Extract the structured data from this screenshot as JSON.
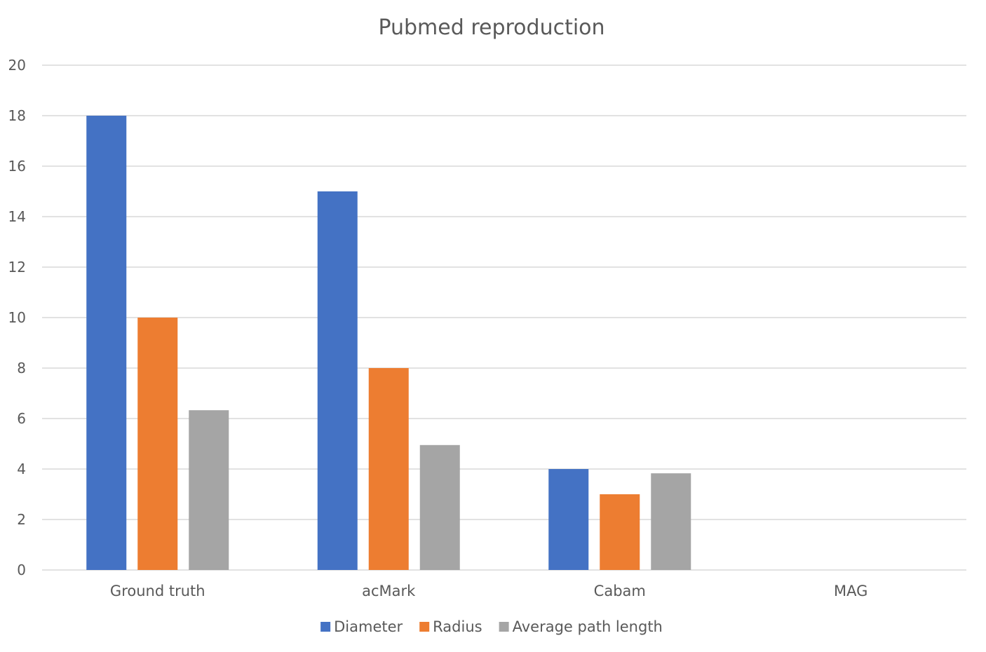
{
  "chart_data": {
    "type": "bar",
    "title": "Pubmed reproduction",
    "xlabel": "",
    "ylabel": "",
    "categories": [
      "Ground truth",
      "acMark",
      "Cabam",
      "MAG"
    ],
    "series": [
      {
        "name": "Diameter",
        "color": "#4472c4",
        "values": [
          18,
          15,
          4,
          null
        ]
      },
      {
        "name": "Radius",
        "color": "#ed7d31",
        "values": [
          10,
          8,
          3,
          null
        ]
      },
      {
        "name": "Average path length",
        "color": "#a5a5a5",
        "values": [
          6.33,
          4.95,
          3.83,
          null
        ]
      }
    ],
    "ylim": [
      0,
      20
    ],
    "yticks": [
      0,
      2,
      4,
      6,
      8,
      10,
      12,
      14,
      16,
      18,
      20
    ],
    "grid": true,
    "legend": "bottom"
  }
}
